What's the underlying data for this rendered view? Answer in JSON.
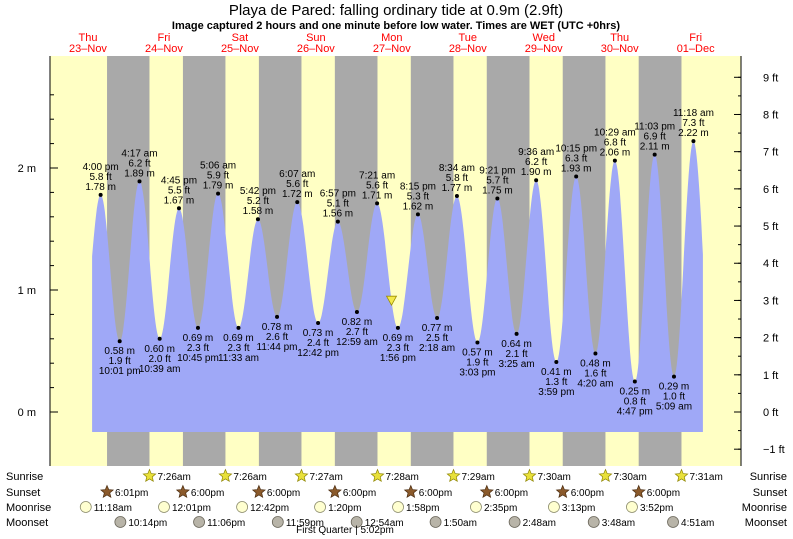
{
  "title": "Playa de Pared: falling  ordinary tide at 0.9m (2.9ft)",
  "subtitle": "Image captured 2 hours and one minute before low water. Times are WET (UTC +0hrs)",
  "colors": {
    "day": "#ffffc4",
    "night": "#a9a9a9",
    "water": "#9fa8f7",
    "date_text": "#ff0000",
    "sun_star": "#e8e03a",
    "sunset_star": "#8b5a2b",
    "moonrise": "#ffffd0",
    "moonset": "#b8b4a8"
  },
  "days": [
    {
      "name": "Thu",
      "date": "23–Nov"
    },
    {
      "name": "Fri",
      "date": "24–Nov"
    },
    {
      "name": "Sat",
      "date": "25–Nov"
    },
    {
      "name": "Sun",
      "date": "26–Nov"
    },
    {
      "name": "Mon",
      "date": "27–Nov"
    },
    {
      "name": "Tue",
      "date": "28–Nov"
    },
    {
      "name": "Wed",
      "date": "29–Nov"
    },
    {
      "name": "Thu",
      "date": "30–Nov"
    },
    {
      "name": "Fri",
      "date": "01–Dec"
    }
  ],
  "chart_data": {
    "type": "area",
    "title": "Playa de Pared: falling  ordinary tide at 0.9m (2.9ft)",
    "y_left_unit": "m",
    "y_left_ticks": [
      "0 m",
      "1 m",
      "2 m"
    ],
    "y_left_range_m": [
      -0.16,
      2.88
    ],
    "y_right_ticks": [
      "−1 ft",
      "0 ft",
      "1 ft",
      "2 ft",
      "3 ft",
      "4 ft",
      "5 ft",
      "6 ft",
      "7 ft",
      "8 ft",
      "9 ft"
    ],
    "x_range_hours": [
      0,
      216
    ],
    "x_note": "hours from 23-Nov 00:00 WET",
    "tides": [
      {
        "type": "high",
        "h": 16.0,
        "time": "4:00 pm",
        "ft": "5.8 ft",
        "m": 1.78
      },
      {
        "type": "low",
        "h": 22.02,
        "time": "10:01 pm",
        "ft": "1.9 ft",
        "m": 0.58
      },
      {
        "type": "high",
        "h": 28.28,
        "time": "4:17 am",
        "ft": "6.2 ft",
        "m": 1.89
      },
      {
        "type": "low",
        "h": 34.65,
        "time": "10:39 am",
        "ft": "2.0 ft",
        "m": 0.6
      },
      {
        "type": "high",
        "h": 40.75,
        "time": "4:45 pm",
        "ft": "5.5 ft",
        "m": 1.67
      },
      {
        "type": "low",
        "h": 46.75,
        "time": "10:45 pm",
        "ft": "2.3 ft",
        "m": 0.69
      },
      {
        "type": "high",
        "h": 53.1,
        "time": "5:06 am",
        "ft": "5.9 ft",
        "m": 1.79
      },
      {
        "type": "low",
        "h": 59.55,
        "time": "11:33 am",
        "ft": "2.3 ft",
        "m": 0.69
      },
      {
        "type": "high",
        "h": 65.7,
        "time": "5:42 pm",
        "ft": "5.2 ft",
        "m": 1.58
      },
      {
        "type": "low",
        "h": 71.73,
        "time": "11:44 pm",
        "ft": "2.6 ft",
        "m": 0.78
      },
      {
        "type": "high",
        "h": 78.12,
        "time": "6:07 am",
        "ft": "5.6 ft",
        "m": 1.72
      },
      {
        "type": "low",
        "h": 84.7,
        "time": "12:42 pm",
        "ft": "2.4 ft",
        "m": 0.73
      },
      {
        "type": "high",
        "h": 90.95,
        "time": "6:57 pm",
        "ft": "5.1 ft",
        "m": 1.56
      },
      {
        "type": "low",
        "h": 96.98,
        "time": "12:59 am",
        "ft": "2.7 ft",
        "m": 0.82
      },
      {
        "type": "high",
        "h": 103.35,
        "time": "7:21 am",
        "ft": "5.6 ft",
        "m": 1.71
      },
      {
        "type": "low",
        "h": 109.93,
        "time": "1:56 pm",
        "ft": "2.3 ft",
        "m": 0.69
      },
      {
        "type": "high",
        "h": 116.25,
        "time": "8:15 pm",
        "ft": "5.3 ft",
        "m": 1.62
      },
      {
        "type": "low",
        "h": 122.3,
        "time": "2:18 am",
        "ft": "2.5 ft",
        "m": 0.77
      },
      {
        "type": "high",
        "h": 128.57,
        "time": "8:34 am",
        "ft": "5.8 ft",
        "m": 1.77
      },
      {
        "type": "low",
        "h": 135.05,
        "time": "3:03 pm",
        "ft": "1.9 ft",
        "m": 0.57
      },
      {
        "type": "high",
        "h": 141.35,
        "time": "9:21 pm",
        "ft": "5.7 ft",
        "m": 1.75
      },
      {
        "type": "low",
        "h": 147.42,
        "time": "3:25 am",
        "ft": "2.1 ft",
        "m": 0.64
      },
      {
        "type": "high",
        "h": 153.6,
        "time": "9:36 am",
        "ft": "6.2 ft",
        "m": 1.9
      },
      {
        "type": "low",
        "h": 159.98,
        "time": "3:59 pm",
        "ft": "1.3 ft",
        "m": 0.41
      },
      {
        "type": "high",
        "h": 166.25,
        "time": "10:15 pm",
        "ft": "6.3 ft",
        "m": 1.93
      },
      {
        "type": "low",
        "h": 172.33,
        "time": "4:20 am",
        "ft": "1.6 ft",
        "m": 0.48
      },
      {
        "type": "high",
        "h": 178.48,
        "time": "10:29 am",
        "ft": "6.8 ft",
        "m": 2.06
      },
      {
        "type": "low",
        "h": 184.78,
        "time": "4:47 pm",
        "ft": "0.8 ft",
        "m": 0.25
      },
      {
        "type": "high",
        "h": 191.05,
        "time": "11:03 pm",
        "ft": "6.9 ft",
        "m": 2.11
      },
      {
        "type": "low",
        "h": 197.15,
        "time": "5:09 am",
        "ft": "1.0 ft",
        "m": 0.29
      },
      {
        "type": "high",
        "h": 203.3,
        "time": "11:18 am",
        "ft": "7.3 ft",
        "m": 2.22
      }
    ],
    "current": {
      "h": 107.9,
      "m": 0.9
    }
  },
  "sun_moon": {
    "row_labels": [
      "Sunrise",
      "Sunset",
      "Moonrise",
      "Moonset"
    ],
    "sunrise": [
      {
        "h": 31.43,
        "t": "7:26am"
      },
      {
        "h": 55.43,
        "t": "7:26am"
      },
      {
        "h": 79.45,
        "t": "7:27am"
      },
      {
        "h": 103.47,
        "t": "7:28am"
      },
      {
        "h": 127.48,
        "t": "7:29am"
      },
      {
        "h": 151.5,
        "t": "7:30am"
      },
      {
        "h": 175.5,
        "t": "7:30am"
      },
      {
        "h": 199.52,
        "t": "7:31am"
      }
    ],
    "sunset": [
      {
        "h": 18.02,
        "t": "6:01pm"
      },
      {
        "h": 42.0,
        "t": "6:00pm"
      },
      {
        "h": 66.0,
        "t": "6:00pm"
      },
      {
        "h": 90.0,
        "t": "6:00pm"
      },
      {
        "h": 114.0,
        "t": "6:00pm"
      },
      {
        "h": 138.0,
        "t": "6:00pm"
      },
      {
        "h": 162.0,
        "t": "6:00pm"
      },
      {
        "h": 186.0,
        "t": "6:00pm"
      }
    ],
    "moonrise": [
      {
        "h": 11.3,
        "t": "11:18am"
      },
      {
        "h": 36.02,
        "t": "12:01pm"
      },
      {
        "h": 60.7,
        "t": "12:42pm"
      },
      {
        "h": 85.33,
        "t": "1:20pm"
      },
      {
        "h": 109.97,
        "t": "1:58pm"
      },
      {
        "h": 134.58,
        "t": "2:35pm"
      },
      {
        "h": 159.22,
        "t": "3:13pm"
      },
      {
        "h": 183.87,
        "t": "3:52pm"
      }
    ],
    "moonset": [
      {
        "h": 22.23,
        "t": "10:14pm"
      },
      {
        "h": 47.1,
        "t": "11:06pm"
      },
      {
        "h": 71.98,
        "t": "11:59pm"
      },
      {
        "h": 96.9,
        "t": "12:54am"
      },
      {
        "h": 121.83,
        "t": "1:50am"
      },
      {
        "h": 146.8,
        "t": "2:48am"
      },
      {
        "h": 171.8,
        "t": "3:48am"
      },
      {
        "h": 196.85,
        "t": "4:51am"
      }
    ],
    "moon_phase": "First Quarter | 5:02pm"
  }
}
